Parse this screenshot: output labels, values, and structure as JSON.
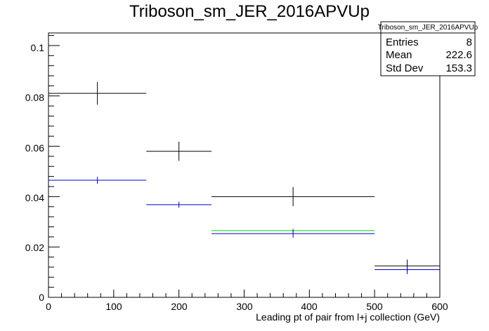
{
  "chart_data": {
    "type": "scatter",
    "title": "Triboson_sm_JER_2016APVUp",
    "xlabel": "Leading pt of pair from l+j collection (GeV)",
    "ylabel": "",
    "xlim": [
      0,
      600
    ],
    "ylim": [
      0,
      0.105
    ],
    "x_ticks": [
      "0",
      "100",
      "200",
      "300",
      "400",
      "500",
      "600"
    ],
    "y_ticks": [
      "0",
      "0.02",
      "0.04",
      "0.06",
      "0.08",
      "0.1"
    ],
    "grid": false,
    "series": [
      {
        "color": "#000000",
        "points": [
          {
            "xlo": 0,
            "xhi": 150,
            "x": 75,
            "y": 0.081,
            "err": 0.0045
          },
          {
            "xlo": 150,
            "xhi": 250,
            "x": 200,
            "y": 0.058,
            "err": 0.0038
          },
          {
            "xlo": 250,
            "xhi": 500,
            "x": 375,
            "y": 0.04,
            "err": 0.0038
          },
          {
            "xlo": 500,
            "xhi": 600,
            "x": 550,
            "y": 0.0125,
            "err": 0.0025
          }
        ]
      },
      {
        "color": "#00cc00",
        "points": [
          {
            "xlo": 250,
            "xhi": 500,
            "x": 375,
            "y": 0.0265,
            "err": 0.0008
          }
        ]
      },
      {
        "color": "#0000cc",
        "points": [
          {
            "xlo": 0,
            "xhi": 150,
            "x": 75,
            "y": 0.0465,
            "err": 0.0014
          },
          {
            "xlo": 150,
            "xhi": 250,
            "x": 200,
            "y": 0.0368,
            "err": 0.0012
          },
          {
            "xlo": 250,
            "xhi": 500,
            "x": 375,
            "y": 0.0253,
            "err": 0.0016
          },
          {
            "xlo": 500,
            "xhi": 600,
            "x": 550,
            "y": 0.011,
            "err": 0.0018
          }
        ]
      }
    ],
    "stats": {
      "name": "Triboson_sm_JER_2016APVUp",
      "rows": [
        {
          "label": "Entries",
          "value": "8"
        },
        {
          "label": "Mean",
          "value": "222.6"
        },
        {
          "label": "Std Dev",
          "value": "153.3"
        }
      ],
      "placement": "top-right"
    }
  }
}
